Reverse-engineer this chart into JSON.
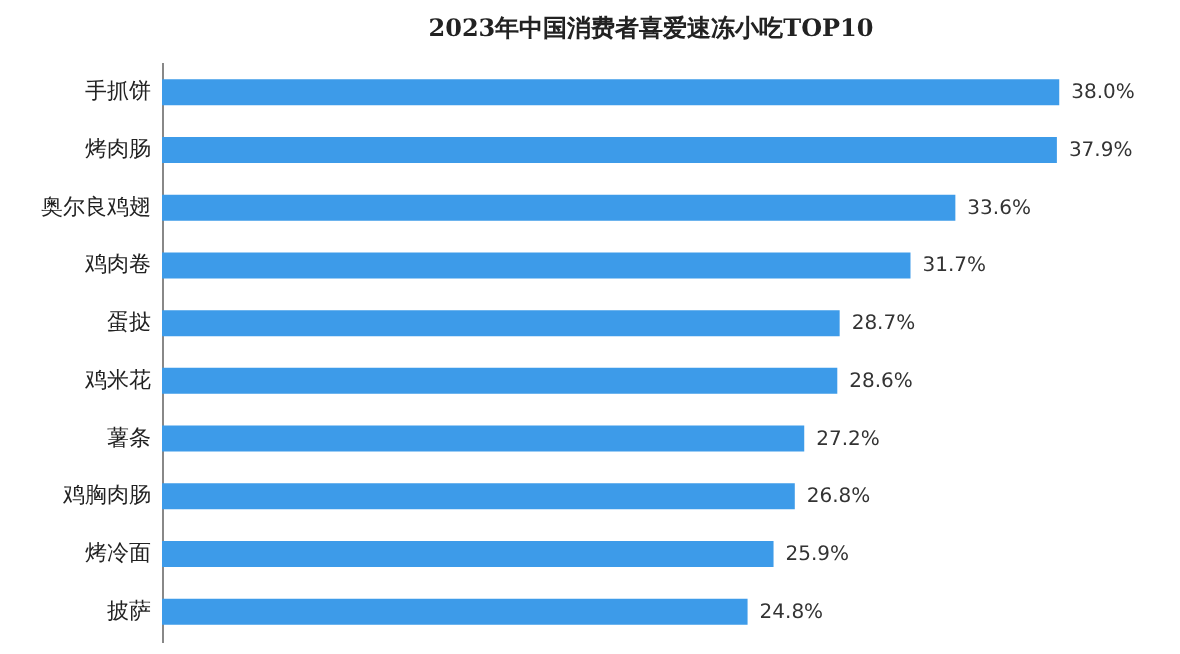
{
  "chart_data": {
    "type": "bar",
    "orientation": "horizontal",
    "title": "2023年中国消费者喜爱速冻小吃TOP10",
    "categories": [
      "手抓饼",
      "烤肉肠",
      "奥尔良鸡翅",
      "鸡肉卷",
      "蛋挞",
      "鸡米花",
      "薯条",
      "鸡胸肉肠",
      "烤冷面",
      "披萨"
    ],
    "values": [
      38.0,
      37.9,
      33.6,
      31.7,
      28.7,
      28.6,
      27.2,
      26.8,
      25.9,
      24.8
    ],
    "value_labels": [
      "38.0%",
      "37.9%",
      "33.6%",
      "31.7%",
      "28.7%",
      "28.6%",
      "27.2%",
      "26.8%",
      "25.9%",
      "24.8%"
    ],
    "color": "#3d9be9",
    "tick_labels": "y",
    "grid": false
  }
}
